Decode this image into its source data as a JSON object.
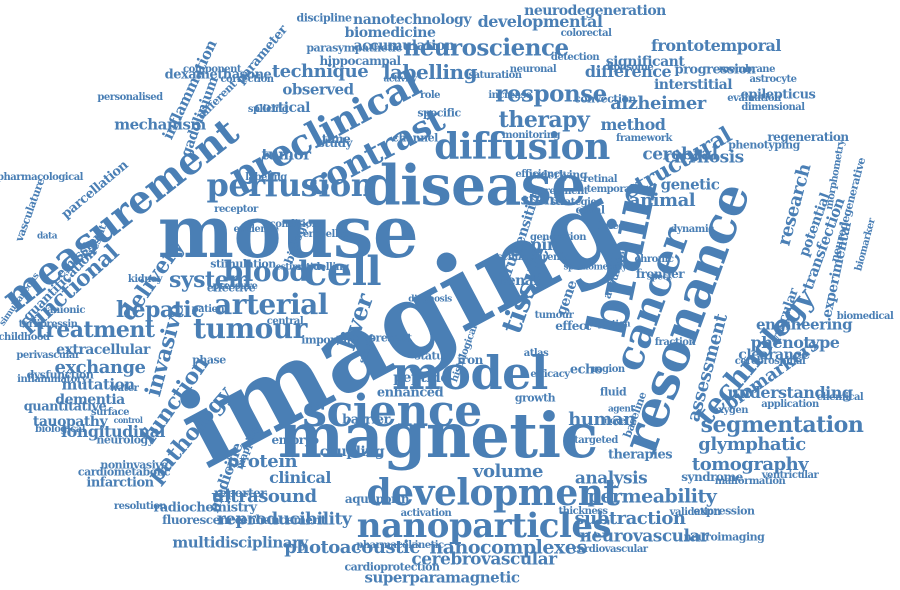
{
  "color": "#4a7fb5",
  "words": [
    "imaging",
    "mouse",
    "magnetic",
    "model",
    "disease",
    "brain",
    "resonance",
    "cancer",
    "science",
    "development",
    "nanoparticles",
    "perfusion",
    "measurement",
    "preclinical",
    "diffusion",
    "contrast",
    "neuroscience",
    "cell",
    "blood",
    "arterial",
    "technology",
    "tumour",
    "tissue",
    "response",
    "therapy",
    "structural",
    "segmentation",
    "pathology",
    "function",
    "invasive",
    "treatment",
    "hepatic",
    "system",
    "delivery",
    "functional",
    "technique",
    "labelling",
    "alzheimer",
    "glymphatic",
    "permeability",
    "tomography",
    "biomarkers",
    "assessment",
    "research",
    "nanocomplexes",
    "photoacoustic",
    "neurovascular",
    "subtraction",
    "ultrasound",
    "reproducibility",
    "multidisciplinary",
    "superparamagnetic",
    "cerebrovascular",
    "human",
    "volume",
    "analysis",
    "protein",
    "clinical",
    "medicine",
    "exchange",
    "extracellular",
    "mutation",
    "dementia",
    "longitudinal",
    "tauopathy",
    "quantitative",
    "liver",
    "spin",
    "nanotechnology",
    "neurodegeneration",
    "developmental",
    "biomedicine",
    "accumulation",
    "frontotemporal",
    "difference",
    "significant",
    "interstitial",
    "method",
    "cerebral",
    "cirrhosis",
    "genetic",
    "animal",
    "potential",
    "transfection",
    "experimental",
    "phenotype",
    "engineering",
    "understanding",
    "vascular",
    "clearance",
    "observed",
    "cortical",
    "tumor",
    "mechanism",
    "inflammation",
    "parameter",
    "dexamethasone",
    "gadolinium",
    "emission",
    "quantification",
    "parcellation",
    "vasculature",
    "radiochemistry",
    "fluorescence",
    "enhancement",
    "aquaporin",
    "coupling",
    "barrier",
    "embryo",
    "reporter",
    "infarction",
    "cardiometabolic",
    "noninvasive",
    "neurology",
    "biological",
    "inflammatory",
    "dysfunction",
    "perivascular",
    "terlipressin",
    "childhood",
    "simultaneous",
    "pharmacological",
    "personalised",
    "component",
    "discipline",
    "parasympathetic",
    "hippocampal",
    "colorectal",
    "progression",
    "epilepticus",
    "astrocyte",
    "dimensional",
    "regeneration",
    "phenotyping",
    "biomarker",
    "neurodegenerative",
    "morphometry",
    "biomedical",
    "application",
    "chemical",
    "cerebrospinal",
    "ventricular",
    "malformation",
    "expression",
    "neuroimaging",
    "cardiovascular",
    "cardioprotection",
    "pharmacokinetic",
    "activation",
    "thickness",
    "validation",
    "syndrome",
    "therapies",
    "peptide",
    "enhanced",
    "gene",
    "effect",
    "drug",
    "stem",
    "renal",
    "echo",
    "iron",
    "study",
    "time",
    "role",
    "activity",
    "neuronal",
    "liposome",
    "membrane",
    "evaluation",
    "convection",
    "framework",
    "monitoring",
    "underlying",
    "agreement",
    "efficiency",
    "sensitive",
    "patient",
    "kidney",
    "anionic",
    "phase",
    "stimulation",
    "pressure",
    "estimation",
    "modelling",
    "effective",
    "water",
    "result",
    "data",
    "biology",
    "cerebellar",
    "diagnosis",
    "important",
    "single",
    "histological",
    "status",
    "atlas",
    "growth",
    "fluid",
    "agent",
    "novel",
    "region",
    "present",
    "targeted",
    "baseline",
    "oxygen",
    "chronic",
    "spect",
    "frontier",
    "injection",
    "accurate",
    "surface",
    "control",
    "resolution",
    "central",
    "different",
    "mapping",
    "strategies",
    "generation",
    "defect",
    "temporal",
    "caval",
    "detection",
    "saturation",
    "increase",
    "channel",
    "specific",
    "labeling",
    "condition",
    "receptor",
    "evidence",
    "correction",
    "splicing",
    "dynamic",
    "fraction",
    "efficacy",
    "splenomegaly",
    "schizophrenia",
    "tumour",
    "retinal",
    "compartment",
    "arrangement",
    "capacity",
    "radiology",
    "rodent",
    "healthy",
    "vivo",
    "lymph",
    "imaging"
  ]
}
